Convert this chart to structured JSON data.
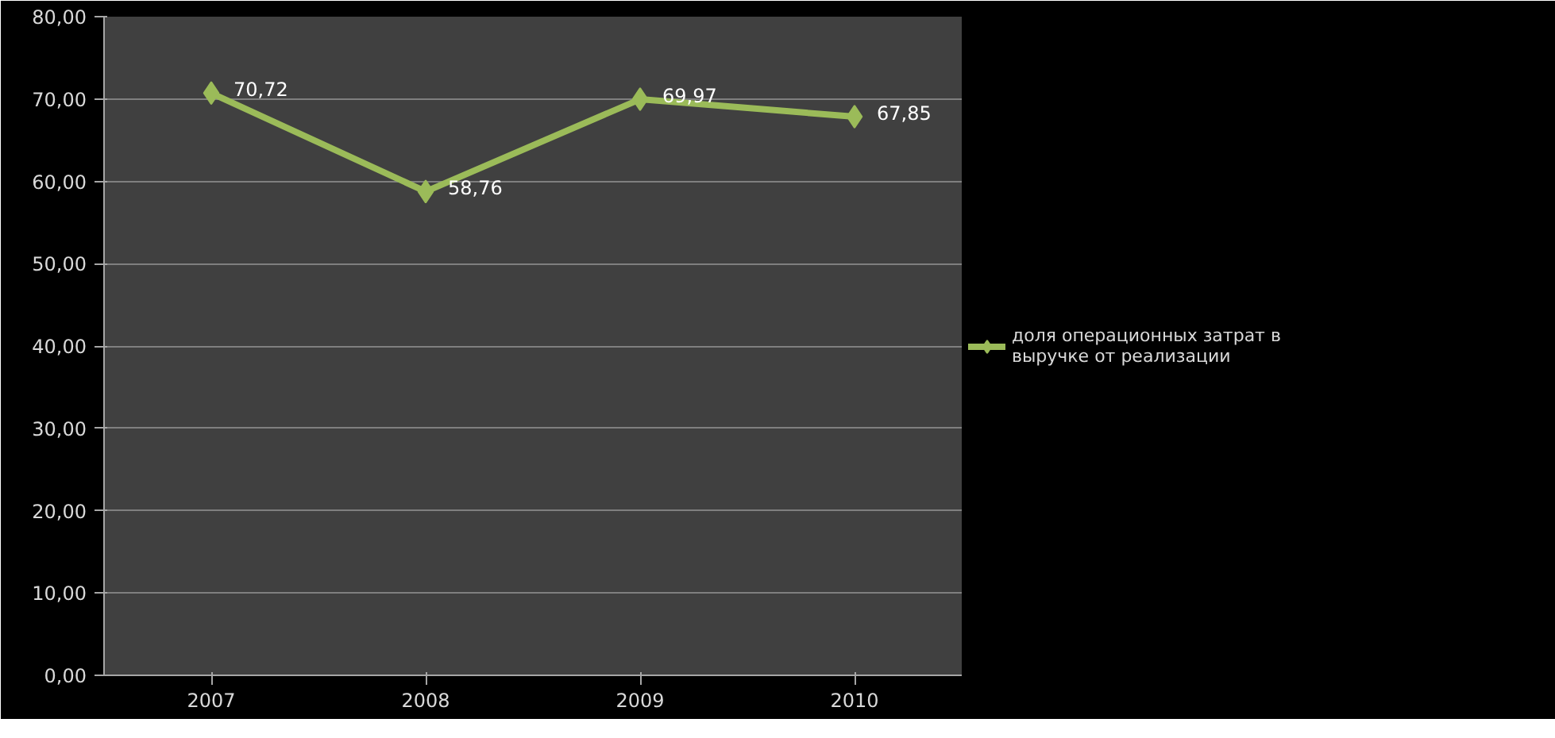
{
  "chart_data": {
    "type": "line",
    "categories": [
      "2007",
      "2008",
      "2009",
      "2010"
    ],
    "series": [
      {
        "name": "доля операционных затрат в выручке от реализации",
        "color": "#9bbb59",
        "values": [
          70.72,
          58.76,
          69.97,
          67.85
        ],
        "value_labels": [
          "70,72",
          "58,76",
          "69,97",
          "67,85"
        ]
      }
    ],
    "ylim": [
      0,
      80
    ],
    "yticks": [
      {
        "value": 0,
        "label": "0,00"
      },
      {
        "value": 10,
        "label": "10,00"
      },
      {
        "value": 20,
        "label": "20,00"
      },
      {
        "value": 30,
        "label": "30,00"
      },
      {
        "value": 40,
        "label": "40,00"
      },
      {
        "value": 50,
        "label": "50,00"
      },
      {
        "value": 60,
        "label": "60,00"
      },
      {
        "value": 70,
        "label": "70,00"
      },
      {
        "value": 80,
        "label": "80,00"
      }
    ],
    "grid": "y",
    "legend": "right",
    "marker": "diamond",
    "line_style": "solid"
  }
}
